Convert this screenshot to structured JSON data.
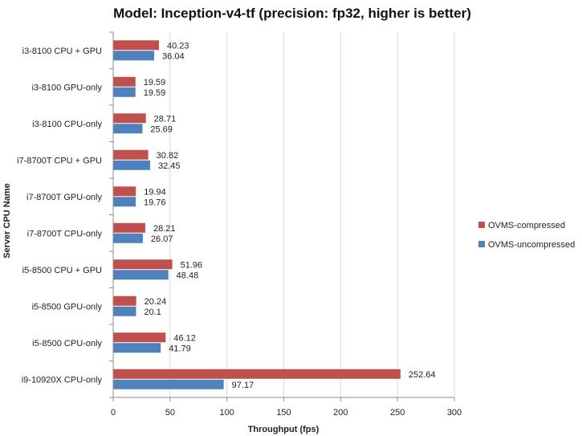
{
  "chart_data": {
    "type": "bar",
    "orientation": "horizontal",
    "title": "Model: Inception-v4-tf (precision: fp32, higher is better)",
    "xlabel": "Throughput (fps)",
    "ylabel": "Server CPU Name",
    "xlim": [
      0,
      300
    ],
    "xticks": [
      0,
      50,
      100,
      150,
      200,
      250,
      300
    ],
    "grid": "vertical",
    "legend_position": "right",
    "categories": [
      "i3-8100 CPU + GPU",
      "i3-8100 GPU-only",
      "i3-8100 CPU-only",
      "i7-8700T CPU + GPU",
      "i7-8700T GPU-only",
      "i7-8700T CPU-only",
      "i5-8500 CPU + GPU",
      "i5-8500 GPU-only",
      "i5-8500 CPU-only",
      "i9-10920X CPU-only"
    ],
    "series": [
      {
        "name": "OVMS-compressed",
        "color": "#c0504d",
        "values": [
          40.23,
          19.59,
          28.71,
          30.82,
          19.94,
          28.21,
          51.96,
          20.24,
          46.12,
          252.64
        ]
      },
      {
        "name": "OVMS-uncompressed",
        "color": "#4f81bd",
        "values": [
          36.04,
          19.59,
          25.69,
          32.45,
          19.76,
          26.07,
          48.48,
          20.1,
          41.79,
          97.17
        ]
      }
    ]
  }
}
